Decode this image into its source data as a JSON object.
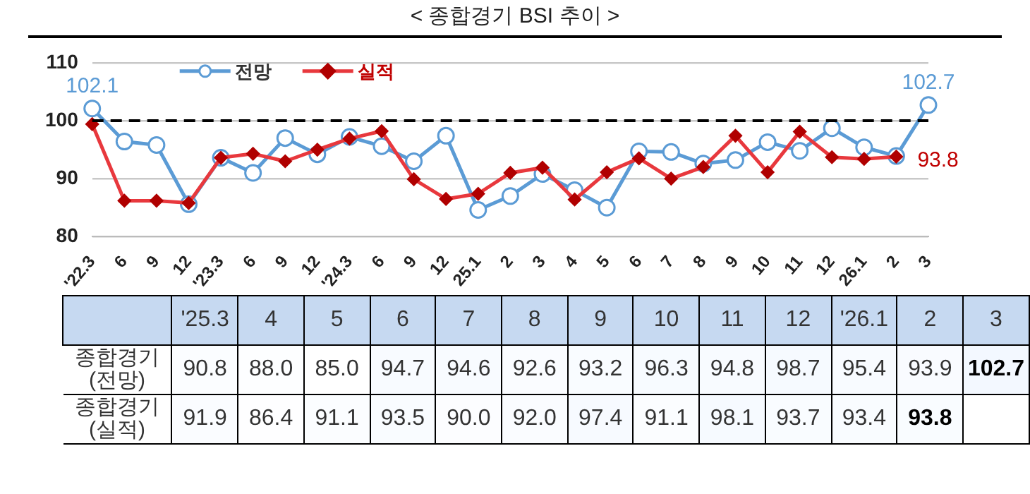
{
  "chart_data": [
    {
      "type": "line",
      "title": "< 종합경기 BSI 추이 >",
      "categories": [
        "'22.3",
        "6",
        "9",
        "12",
        "'23.3",
        "6",
        "9",
        "12",
        "'24.3",
        "6",
        "9",
        "12",
        "25.1",
        "2",
        "3",
        "4",
        "5",
        "6",
        "7",
        "8",
        "9",
        "10",
        "11",
        "12",
        "26.1",
        "2",
        "3"
      ],
      "series": [
        {
          "name": "전망",
          "color": "#5b9bd5",
          "marker": "circle",
          "value_labels": [
            "102.1",
            null,
            null,
            null,
            null,
            null,
            null,
            null,
            null,
            null,
            null,
            null,
            null,
            null,
            null,
            null,
            null,
            null,
            null,
            null,
            null,
            null,
            null,
            null,
            null,
            null,
            "102.7"
          ],
          "values": [
            102.1,
            96.4,
            95.8,
            85.6,
            93.6,
            91.0,
            97.0,
            94.2,
            97.2,
            95.6,
            93.0,
            97.4,
            84.6,
            87.0,
            90.8,
            88.0,
            85.0,
            94.7,
            94.6,
            92.6,
            93.2,
            96.3,
            94.8,
            98.7,
            95.4,
            93.9,
            102.7
          ]
        },
        {
          "name": "실적",
          "color": "#e8383d",
          "marker": "diamond",
          "value_labels": [
            null,
            null,
            null,
            null,
            null,
            null,
            null,
            null,
            null,
            null,
            null,
            null,
            null,
            null,
            null,
            null,
            null,
            null,
            null,
            null,
            null,
            null,
            null,
            null,
            null,
            "93.8",
            null
          ],
          "values": [
            99.4,
            86.2,
            86.2,
            85.8,
            93.6,
            94.3,
            93.0,
            95.0,
            96.9,
            98.2,
            89.9,
            86.5,
            87.4,
            91.0,
            91.9,
            86.4,
            91.1,
            93.5,
            90.0,
            92.0,
            97.4,
            91.1,
            98.1,
            93.7,
            93.4,
            93.8,
            null
          ]
        }
      ],
      "ylim": [
        80,
        110
      ],
      "yticks": [
        80,
        90,
        100,
        110
      ],
      "grid": "y",
      "legend": "top left",
      "ref_lines": [
        {
          "axis": "y",
          "value": 100,
          "color": "#000000",
          "line_style": "dashed"
        }
      ]
    },
    {
      "type": "heatmap",
      "categories": [
        "'25.3",
        "4",
        "5",
        "6",
        "7",
        "8",
        "9",
        "10",
        "11",
        "12",
        "'26.1",
        "2",
        "3"
      ],
      "y_categories": [
        "종합경기 (전망)",
        "종합경기 (실적)"
      ],
      "cells": [
        [
          90.8,
          88.0,
          85.0,
          94.7,
          94.6,
          92.6,
          93.2,
          96.3,
          94.8,
          98.7,
          95.4,
          93.9,
          102.7
        ],
        [
          91.9,
          86.4,
          91.1,
          93.5,
          90.0,
          92.0,
          97.4,
          91.1,
          98.1,
          93.7,
          93.4,
          93.8,
          null
        ]
      ],
      "cell_labels": [
        [
          "90.8",
          "88.0",
          "85.0",
          "94.7",
          "94.6",
          "92.6",
          "93.2",
          "96.3",
          "94.8",
          "98.7",
          "95.4",
          "93.9",
          "102.7"
        ],
        [
          "91.9",
          "86.4",
          "91.1",
          "93.5",
          "90.0",
          "92.0",
          "97.4",
          "91.1",
          "98.1",
          "93.7",
          "93.4",
          "93.8",
          null
        ]
      ]
    }
  ]
}
